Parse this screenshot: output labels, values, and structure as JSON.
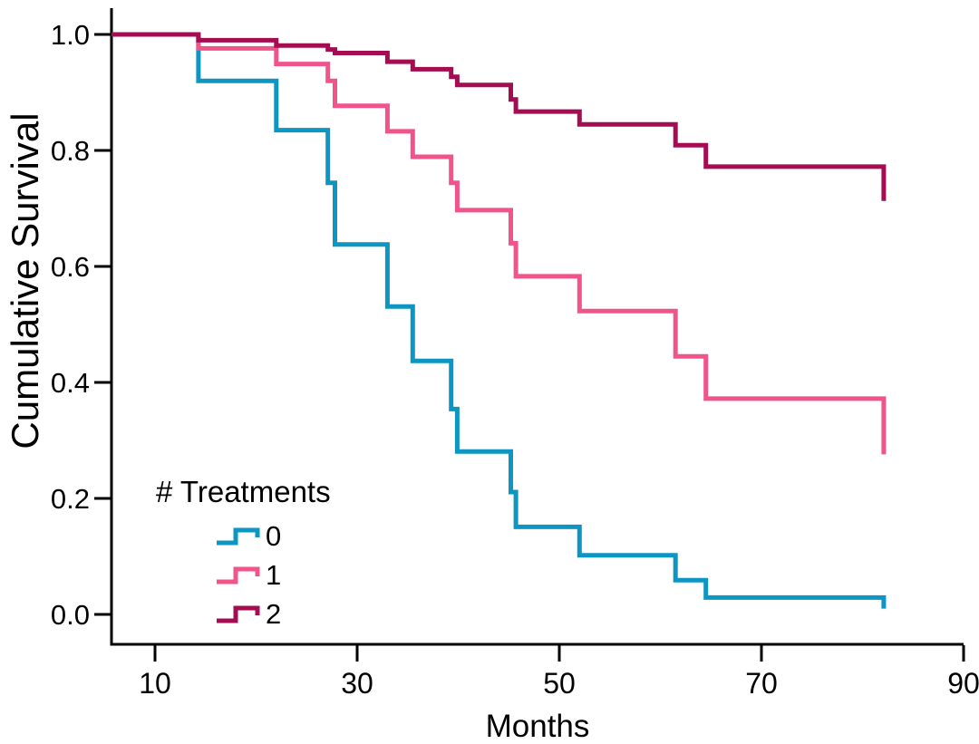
{
  "figure": {
    "background": "#ffffff",
    "text_color": "#000000",
    "axis_color": "#000000"
  },
  "chart_data": {
    "type": "line",
    "subtype": "kaplan-meier-step-survival",
    "title": "",
    "xlabel": "Months",
    "ylabel": "Cumulative Survival",
    "grid": false,
    "x_axis": {
      "start_month": 5.7,
      "max": 90,
      "ticks": [
        10,
        30,
        50,
        70,
        90
      ]
    },
    "y_axis": {
      "min": 0.0,
      "max": 1.0,
      "ticks": [
        1.0,
        0.8,
        0.6,
        0.4,
        0.2,
        0.0
      ],
      "tick_decimals": 1
    },
    "legend": {
      "title": "# Treatments",
      "position": "lower-left",
      "entries": [
        "0",
        "1",
        "2"
      ]
    },
    "start_survival": 1.0,
    "end_month": 82.1,
    "series": [
      {
        "name": "0",
        "color": "#0E96C2",
        "events": [
          [
            14.3,
            0.92
          ],
          [
            22,
            0.835
          ],
          [
            27.1,
            0.744
          ],
          [
            27.8,
            0.638
          ],
          [
            33,
            0.531
          ],
          [
            35.5,
            0.437
          ],
          [
            39.3,
            0.354
          ],
          [
            39.9,
            0.281
          ],
          [
            45.2,
            0.211
          ],
          [
            45.7,
            0.151
          ],
          [
            52,
            0.102
          ],
          [
            61.5,
            0.059
          ],
          [
            64.5,
            0.029
          ]
        ],
        "final_value": 0.01
      },
      {
        "name": "1",
        "color": "#F0548B",
        "events": [
          [
            14.3,
            0.976
          ],
          [
            22,
            0.949
          ],
          [
            27.1,
            0.92
          ],
          [
            27.8,
            0.877
          ],
          [
            33,
            0.833
          ],
          [
            35.5,
            0.789
          ],
          [
            39.3,
            0.744
          ],
          [
            39.9,
            0.697
          ],
          [
            45.2,
            0.64
          ],
          [
            45.7,
            0.583
          ],
          [
            52,
            0.523
          ],
          [
            61.5,
            0.445
          ],
          [
            64.5,
            0.372
          ]
        ],
        "final_value": 0.276
      },
      {
        "name": "2",
        "color": "#A50D53",
        "events": [
          [
            14.3,
            0.99
          ],
          [
            22,
            0.981
          ],
          [
            27.1,
            0.974
          ],
          [
            27.8,
            0.968
          ],
          [
            33,
            0.953
          ],
          [
            35.5,
            0.94
          ],
          [
            39.3,
            0.927
          ],
          [
            39.9,
            0.913
          ],
          [
            45.2,
            0.888
          ],
          [
            45.7,
            0.867
          ],
          [
            52,
            0.845
          ],
          [
            61.5,
            0.809
          ],
          [
            64.5,
            0.772
          ]
        ],
        "final_value": 0.713
      }
    ]
  }
}
